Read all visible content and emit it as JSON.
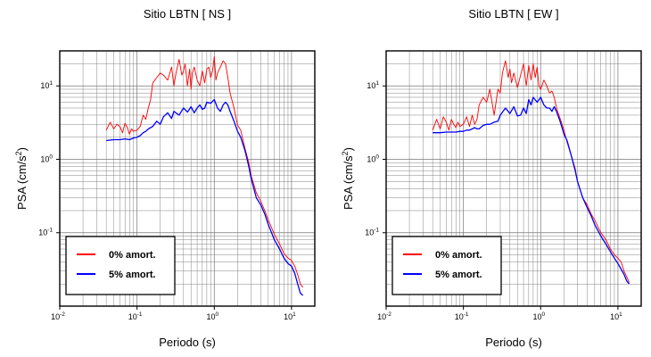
{
  "chart_data": [
    {
      "type": "line",
      "title": "Sitio LBTN [ NS ]",
      "xlabel": "Periodo (s)",
      "ylabel": "PSA (cm/s²)",
      "ylabel_base": "PSA (cm/s",
      "ylabel_sup": "2",
      "ylabel_end": ")",
      "xscale": "log",
      "yscale": "log",
      "xlim": [
        0.01,
        20
      ],
      "ylim": [
        0.01,
        30
      ],
      "grid": true,
      "legend_position": "bottom-left",
      "x_ticks": [
        {
          "value": 0.01,
          "base": "10",
          "exp": "-2"
        },
        {
          "value": 0.1,
          "base": "10",
          "exp": "-1"
        },
        {
          "value": 1,
          "base": "10",
          "exp": "0"
        },
        {
          "value": 10,
          "base": "10",
          "exp": "1"
        }
      ],
      "y_ticks": [
        {
          "value": 0.1,
          "base": "10",
          "exp": "-1"
        },
        {
          "value": 1,
          "base": "10",
          "exp": "0"
        },
        {
          "value": 10,
          "base": "10",
          "exp": "1"
        }
      ],
      "series": [
        {
          "name": "0% amort.",
          "color": "#ff0000",
          "x": [
            0.04,
            0.045,
            0.05,
            0.055,
            0.06,
            0.065,
            0.07,
            0.075,
            0.08,
            0.085,
            0.09,
            0.1,
            0.11,
            0.12,
            0.13,
            0.14,
            0.15,
            0.16,
            0.18,
            0.2,
            0.22,
            0.25,
            0.28,
            0.3,
            0.32,
            0.35,
            0.38,
            0.4,
            0.42,
            0.45,
            0.48,
            0.5,
            0.52,
            0.55,
            0.6,
            0.65,
            0.7,
            0.75,
            0.8,
            0.85,
            0.9,
            0.95,
            1.0,
            1.05,
            1.1,
            1.2,
            1.3,
            1.4,
            1.5,
            1.6,
            1.8,
            2.0,
            2.2,
            2.5,
            2.8,
            3.0,
            3.5,
            4.0,
            4.5,
            5.0,
            6.0,
            7.0,
            8.0,
            9.0,
            10.0,
            11.0,
            12.0,
            13.0,
            14.0
          ],
          "y": [
            2.5,
            3.2,
            2.6,
            3.0,
            2.8,
            2.3,
            3.1,
            2.7,
            2.2,
            2.6,
            2.4,
            2.5,
            2.8,
            4.0,
            3.5,
            5.0,
            6.5,
            11.0,
            13.0,
            15.0,
            14.0,
            12.0,
            18.0,
            10.0,
            15.0,
            23.0,
            14.0,
            16.0,
            20.0,
            10.0,
            17.0,
            9.0,
            15.0,
            18.0,
            12.0,
            10.0,
            16.0,
            11.0,
            17.0,
            18.0,
            13.0,
            16.0,
            25.0,
            12.0,
            15.0,
            18.0,
            22.0,
            20.0,
            13.0,
            8.0,
            5.0,
            2.9,
            2.5,
            1.4,
            0.9,
            0.6,
            0.35,
            0.27,
            0.2,
            0.15,
            0.095,
            0.07,
            0.052,
            0.045,
            0.042,
            0.035,
            0.027,
            0.02,
            0.018
          ]
        },
        {
          "name": "5% amort.",
          "color": "#0000ff",
          "x": [
            0.04,
            0.05,
            0.06,
            0.07,
            0.08,
            0.09,
            0.1,
            0.11,
            0.12,
            0.13,
            0.14,
            0.15,
            0.16,
            0.18,
            0.2,
            0.22,
            0.25,
            0.28,
            0.3,
            0.35,
            0.4,
            0.45,
            0.5,
            0.55,
            0.6,
            0.65,
            0.7,
            0.75,
            0.8,
            0.9,
            1.0,
            1.1,
            1.2,
            1.3,
            1.4,
            1.5,
            1.6,
            1.8,
            2.0,
            2.2,
            2.5,
            2.8,
            3.0,
            3.5,
            4.0,
            4.5,
            5.0,
            6.0,
            7.0,
            8.0,
            9.0,
            10.0,
            11.0,
            12.0,
            13.0,
            14.0
          ],
          "y": [
            1.8,
            1.85,
            1.85,
            1.9,
            1.85,
            1.95,
            2.0,
            2.1,
            2.3,
            2.4,
            2.6,
            2.7,
            2.8,
            3.3,
            3.0,
            3.8,
            4.3,
            3.6,
            4.5,
            4.0,
            5.0,
            4.4,
            5.2,
            4.3,
            5.0,
            5.5,
            4.8,
            5.0,
            6.0,
            5.8,
            6.5,
            5.0,
            4.5,
            5.5,
            6.0,
            5.5,
            4.5,
            3.3,
            2.4,
            2.0,
            1.3,
            0.8,
            0.55,
            0.3,
            0.24,
            0.18,
            0.13,
            0.08,
            0.06,
            0.045,
            0.038,
            0.035,
            0.028,
            0.02,
            0.015,
            0.014
          ]
        }
      ]
    },
    {
      "type": "line",
      "title": "Sitio LBTN [ EW ]",
      "xlabel": "Periodo (s)",
      "ylabel": "PSA (cm/s²)",
      "ylabel_base": "PSA (cm/s",
      "ylabel_sup": "2",
      "ylabel_end": ")",
      "xscale": "log",
      "yscale": "log",
      "xlim": [
        0.01,
        20
      ],
      "ylim": [
        0.01,
        30
      ],
      "grid": true,
      "legend_position": "bottom-left",
      "x_ticks": [
        {
          "value": 0.01,
          "base": "10",
          "exp": "-2"
        },
        {
          "value": 0.1,
          "base": "10",
          "exp": "-1"
        },
        {
          "value": 1,
          "base": "10",
          "exp": "0"
        },
        {
          "value": 10,
          "base": "10",
          "exp": "1"
        }
      ],
      "y_ticks": [
        {
          "value": 0.1,
          "base": "10",
          "exp": "-1"
        },
        {
          "value": 1,
          "base": "10",
          "exp": "0"
        },
        {
          "value": 10,
          "base": "10",
          "exp": "1"
        }
      ],
      "series": [
        {
          "name": "0% amort.",
          "color": "#ff0000",
          "x": [
            0.04,
            0.045,
            0.05,
            0.055,
            0.06,
            0.065,
            0.07,
            0.075,
            0.08,
            0.085,
            0.09,
            0.1,
            0.11,
            0.12,
            0.13,
            0.14,
            0.15,
            0.16,
            0.18,
            0.2,
            0.22,
            0.25,
            0.28,
            0.3,
            0.32,
            0.35,
            0.38,
            0.4,
            0.42,
            0.45,
            0.5,
            0.55,
            0.6,
            0.65,
            0.7,
            0.75,
            0.8,
            0.85,
            0.9,
            0.95,
            1.0,
            1.1,
            1.2,
            1.3,
            1.4,
            1.5,
            1.6,
            1.8,
            2.0,
            2.2,
            2.5,
            2.8,
            3.0,
            3.5,
            4.0,
            4.5,
            5.0,
            6.0,
            7.0,
            8.0,
            9.0,
            10.0,
            11.0,
            12.0,
            13.0,
            14.0
          ],
          "y": [
            2.5,
            3.5,
            2.6,
            3.8,
            3.2,
            2.5,
            3.5,
            3.0,
            2.7,
            3.2,
            2.8,
            3.0,
            3.8,
            2.8,
            4.0,
            3.0,
            3.5,
            5.5,
            7.0,
            6.0,
            9.0,
            4.0,
            9.0,
            8.0,
            15.0,
            22.0,
            13.0,
            17.0,
            11.0,
            15.0,
            9.5,
            14.0,
            20.0,
            10.0,
            19.0,
            12.0,
            20.0,
            13.0,
            18.0,
            10.0,
            9.0,
            12.0,
            10.0,
            8.0,
            8.5,
            7.0,
            5.0,
            3.5,
            2.5,
            1.7,
            1.1,
            0.75,
            0.5,
            0.3,
            0.24,
            0.18,
            0.15,
            0.1,
            0.08,
            0.06,
            0.05,
            0.045,
            0.04,
            0.03,
            0.025,
            0.021
          ]
        },
        {
          "name": "5% amort.",
          "color": "#0000ff",
          "x": [
            0.04,
            0.05,
            0.06,
            0.07,
            0.08,
            0.09,
            0.1,
            0.11,
            0.12,
            0.13,
            0.14,
            0.15,
            0.16,
            0.18,
            0.2,
            0.22,
            0.25,
            0.28,
            0.3,
            0.35,
            0.4,
            0.45,
            0.5,
            0.55,
            0.6,
            0.65,
            0.7,
            0.75,
            0.8,
            0.9,
            1.0,
            1.1,
            1.2,
            1.3,
            1.4,
            1.5,
            1.6,
            1.8,
            2.0,
            2.2,
            2.5,
            2.8,
            3.0,
            3.5,
            4.0,
            4.5,
            5.0,
            6.0,
            7.0,
            8.0,
            9.0,
            10.0,
            11.0,
            12.0,
            13.0,
            14.0
          ],
          "y": [
            2.3,
            2.3,
            2.35,
            2.35,
            2.35,
            2.4,
            2.4,
            2.5,
            2.5,
            2.6,
            2.7,
            2.6,
            2.6,
            2.9,
            3.0,
            3.0,
            3.2,
            3.3,
            4.0,
            5.0,
            4.2,
            5.2,
            3.9,
            4.0,
            5.0,
            4.2,
            6.5,
            5.5,
            7.0,
            6.0,
            7.0,
            5.5,
            5.0,
            5.0,
            4.5,
            5.2,
            4.5,
            3.2,
            2.2,
            1.8,
            1.1,
            0.7,
            0.5,
            0.3,
            0.22,
            0.17,
            0.13,
            0.09,
            0.07,
            0.055,
            0.045,
            0.038,
            0.032,
            0.027,
            0.022,
            0.02
          ]
        }
      ]
    }
  ]
}
